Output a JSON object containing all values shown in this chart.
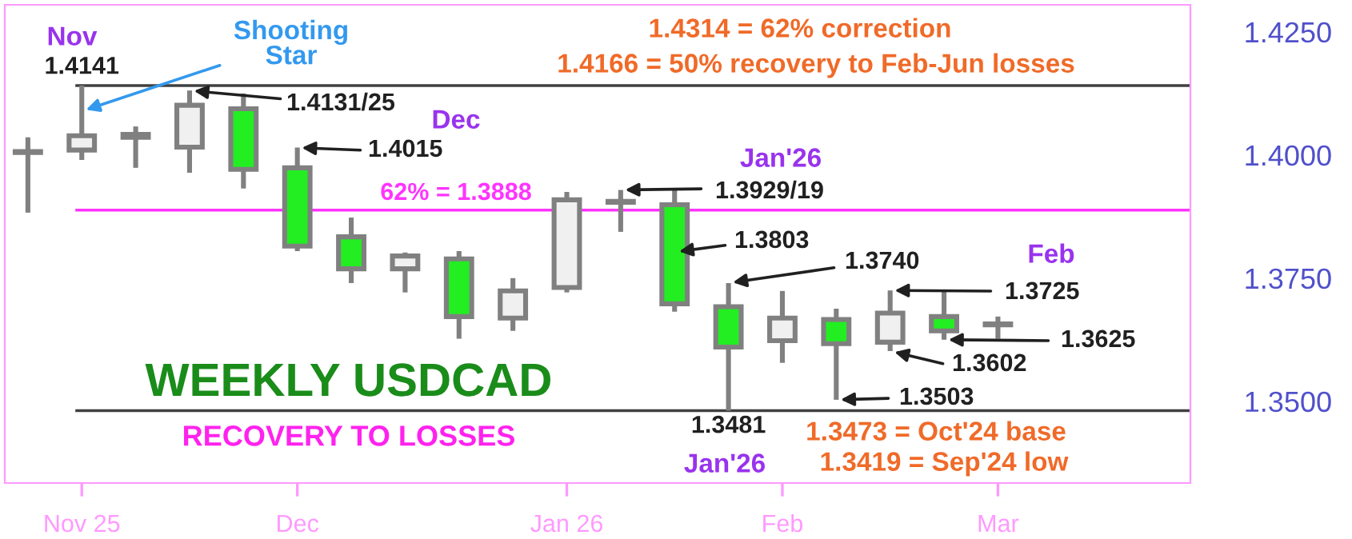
{
  "chart_data": {
    "type": "candlestick",
    "title": "WEEKLY USDCAD",
    "subtitle": "RECOVERY TO LOSSES",
    "x": [
      "2025-10-27",
      "2025-11-03",
      "2025-11-10",
      "2025-11-17",
      "2025-11-24",
      "2025-12-01",
      "2025-12-08",
      "2025-12-15",
      "2025-12-22",
      "2025-12-29",
      "2026-01-05",
      "2026-01-12",
      "2026-01-19",
      "2026-01-26",
      "2026-02-02",
      "2026-02-09",
      "2026-02-16",
      "2026-02-23",
      "2026-03-02"
    ],
    "ohlc": [
      [
        1.4007,
        1.4036,
        1.3883,
        1.4005
      ],
      [
        1.401,
        1.4141,
        1.399,
        1.4039
      ],
      [
        1.4042,
        1.4058,
        1.3974,
        1.4036
      ],
      [
        1.4016,
        1.4131,
        1.3964,
        1.4101
      ],
      [
        1.4094,
        1.4125,
        1.3932,
        1.3971
      ],
      [
        1.3974,
        1.4015,
        1.3805,
        1.3815
      ],
      [
        1.3834,
        1.3873,
        1.374,
        1.3769
      ],
      [
        1.3769,
        1.3802,
        1.3721,
        1.3795
      ],
      [
        1.3789,
        1.3805,
        1.3627,
        1.3672
      ],
      [
        1.3669,
        1.375,
        1.3643,
        1.3724
      ],
      [
        1.3731,
        1.3925,
        1.3721,
        1.3909
      ],
      [
        1.3906,
        1.3929,
        1.3844,
        1.3904
      ],
      [
        1.3899,
        1.3929,
        1.3682,
        1.3698
      ],
      [
        1.3692,
        1.374,
        1.3481,
        1.361
      ],
      [
        1.3623,
        1.3724,
        1.3578,
        1.3669
      ],
      [
        1.3666,
        1.3688,
        1.3503,
        1.3617
      ],
      [
        1.362,
        1.3725,
        1.3602,
        1.3679
      ],
      [
        1.3672,
        1.3725,
        1.3625,
        1.3643
      ],
      [
        1.3657,
        1.3672,
        1.3627,
        1.3655
      ]
    ],
    "xlim": [
      "2025-10-24",
      "2026-03-27"
    ],
    "xticks": [
      {
        "value": "2025-11-03",
        "label": "Nov 25"
      },
      {
        "value": "2025-12-01",
        "label": "Dec"
      },
      {
        "value": "2026-01-05",
        "label": "Jan 26"
      },
      {
        "value": "2026-02-02",
        "label": "Feb"
      },
      {
        "value": "2026-03-02",
        "label": "Mar"
      }
    ],
    "ylim": [
      1.3334,
      1.4305
    ],
    "yticks": [
      {
        "value": 1.35,
        "label": "1.3500"
      },
      {
        "value": 1.375,
        "label": "1.3750"
      },
      {
        "value": 1.4,
        "label": "1.4000"
      },
      {
        "value": 1.425,
        "label": "1.4250"
      }
    ],
    "ref_lines": [
      {
        "axis": "y",
        "value": 1.4141,
        "color": "#404040"
      },
      {
        "axis": "y",
        "value": 1.3888,
        "label": "62% = 1.3888",
        "color": "#ff33ff"
      },
      {
        "axis": "y",
        "value": 1.3481,
        "color": "#404040"
      }
    ],
    "grid": false,
    "legend": false,
    "annotations": [
      "Nov",
      {
        "text": "1.4141",
        "x": "2025-11-03",
        "y": 1.4141
      },
      {
        "text": "Shooting\nStar",
        "x": "2025-11-03",
        "y": 1.4089
      },
      {
        "text": "1.4131/25",
        "x": "2025-11-17",
        "y": 1.4131
      },
      "Dec",
      {
        "text": "1.4015",
        "x": "2025-12-01",
        "y": 1.4015
      },
      "Jan'26",
      {
        "text": "1.3929/19",
        "x": "2026-01-12",
        "y": 1.3929
      },
      {
        "text": "1.3803",
        "x": "2026-01-19",
        "y": 1.3803
      },
      {
        "text": "1.3740",
        "x": "2026-01-26",
        "y": 1.374
      },
      "Feb",
      {
        "text": "1.3725",
        "x": "2026-02-16",
        "y": 1.3725
      },
      {
        "text": "1.3625",
        "x": "2026-02-23",
        "y": 1.3625
      },
      {
        "text": "1.3602",
        "x": "2026-02-16",
        "y": 1.3602
      },
      {
        "text": "1.3503",
        "x": "2026-02-09",
        "y": 1.3503
      },
      {
        "text": "1.3481",
        "x": "2026-01-26",
        "y": 1.3481
      },
      "Jan'26",
      "1.3473 = Oct'24 base",
      "1.3419 = Sep'24 low",
      "1.4314 = 62% correction",
      "1.4166 = 50% recovery to Feb-Jun losses"
    ]
  }
}
